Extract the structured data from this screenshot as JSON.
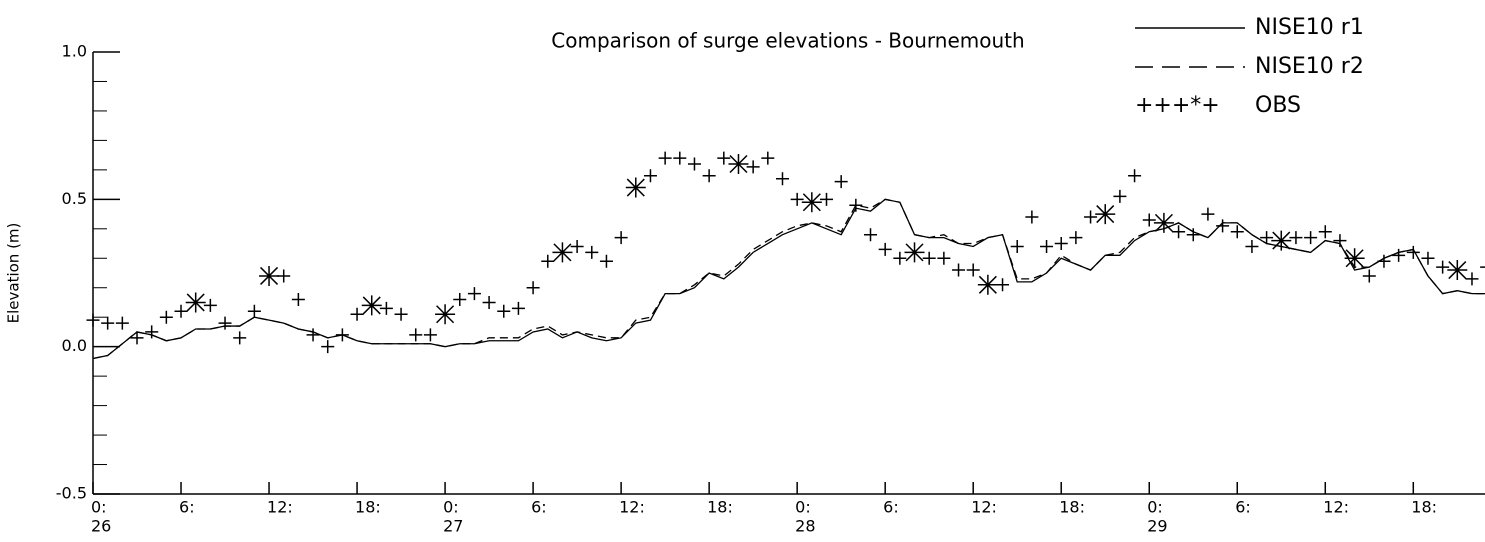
{
  "chart_data": {
    "type": "line",
    "title": "Comparison of surge elevations - Bournemouth",
    "y_label": "Elevation (m)",
    "xlim": [
      0,
      95
    ],
    "ylim": [
      -0.5,
      1.0
    ],
    "yticks": [
      {
        "value": -0.5,
        "label": "-0.5"
      },
      {
        "value": 0,
        "label": "0.0"
      },
      {
        "value": 0.5,
        "label": "0.5"
      },
      {
        "value": 1,
        "label": "1.0"
      }
    ],
    "yminorticks": [
      -0.4,
      -0.3,
      -0.2,
      -0.1,
      0.1,
      0.2,
      0.3,
      0.4,
      0.6,
      0.7,
      0.8,
      0.9
    ],
    "xticks": [
      {
        "value": 0,
        "label": "0:"
      },
      {
        "value": 6,
        "label": "6:"
      },
      {
        "value": 12,
        "label": "12:"
      },
      {
        "value": 18,
        "label": "18:"
      },
      {
        "value": 24,
        "label": "0:"
      },
      {
        "value": 30,
        "label": "6:"
      },
      {
        "value": 36,
        "label": "12:"
      },
      {
        "value": 42,
        "label": "18:"
      },
      {
        "value": 48,
        "label": "0:"
      },
      {
        "value": 54,
        "label": "6:"
      },
      {
        "value": 60,
        "label": "12:"
      },
      {
        "value": 66,
        "label": "18:"
      },
      {
        "value": 72,
        "label": "0:"
      },
      {
        "value": 78,
        "label": "6:"
      },
      {
        "value": 84,
        "label": "12:"
      },
      {
        "value": 90,
        "label": "18:"
      }
    ],
    "day_ticks": [
      {
        "value": 0,
        "label": "26"
      },
      {
        "value": 24,
        "label": "27"
      },
      {
        "value": 48,
        "label": "28"
      },
      {
        "value": 72,
        "label": "29"
      }
    ],
    "x": [
      0,
      1,
      2,
      3,
      4,
      5,
      6,
      7,
      8,
      9,
      10,
      11,
      12,
      13,
      14,
      15,
      16,
      17,
      18,
      19,
      20,
      21,
      22,
      23,
      24,
      25,
      26,
      27,
      28,
      29,
      30,
      31,
      32,
      33,
      34,
      35,
      36,
      37,
      38,
      39,
      40,
      41,
      42,
      43,
      44,
      45,
      46,
      47,
      48,
      49,
      50,
      51,
      52,
      53,
      54,
      55,
      56,
      57,
      58,
      59,
      60,
      61,
      62,
      63,
      64,
      65,
      66,
      67,
      68,
      69,
      70,
      71,
      72,
      73,
      74,
      75,
      76,
      77,
      78,
      79,
      80,
      81,
      82,
      83,
      84,
      85,
      86,
      87,
      88,
      89,
      90,
      91,
      92,
      93,
      94,
      95
    ],
    "series": [
      {
        "name": "NISE10 r1",
        "color": "#000000",
        "dash": "none",
        "values": [
          -0.04,
          -0.03,
          0.01,
          0.05,
          0.04,
          0.02,
          0.03,
          0.06,
          0.06,
          0.07,
          0.07,
          0.1,
          0.09,
          0.08,
          0.06,
          0.05,
          0.03,
          0.04,
          0.02,
          0.01,
          0.01,
          0.01,
          0.01,
          0.01,
          0.0,
          0.01,
          0.01,
          0.02,
          0.02,
          0.02,
          0.05,
          0.06,
          0.03,
          0.05,
          0.03,
          0.02,
          0.03,
          0.08,
          0.09,
          0.18,
          0.18,
          0.2,
          0.25,
          0.23,
          0.27,
          0.32,
          0.35,
          0.38,
          0.4,
          0.42,
          0.4,
          0.38,
          0.47,
          0.46,
          0.5,
          0.49,
          0.38,
          0.37,
          0.37,
          0.35,
          0.34,
          0.37,
          0.38,
          0.22,
          0.22,
          0.25,
          0.3,
          0.28,
          0.26,
          0.31,
          0.31,
          0.36,
          0.39,
          0.4,
          0.42,
          0.39,
          0.37,
          0.42,
          0.42,
          0.38,
          0.35,
          0.34,
          0.33,
          0.32,
          0.36,
          0.35,
          0.26,
          0.27,
          0.3,
          0.32,
          0.33,
          0.24,
          0.18,
          0.19,
          0.18,
          0.18
        ]
      },
      {
        "name": "NISE10 r2",
        "color": "#000000",
        "dash": "8,5",
        "values": [
          -0.04,
          -0.03,
          0.01,
          0.05,
          0.04,
          0.02,
          0.03,
          0.06,
          0.06,
          0.07,
          0.07,
          0.1,
          0.09,
          0.08,
          0.06,
          0.05,
          0.03,
          0.04,
          0.02,
          0.01,
          0.01,
          0.01,
          0.01,
          0.01,
          0.0,
          0.01,
          0.01,
          0.03,
          0.03,
          0.03,
          0.06,
          0.07,
          0.04,
          0.05,
          0.04,
          0.03,
          0.03,
          0.09,
          0.1,
          0.18,
          0.18,
          0.21,
          0.25,
          0.24,
          0.28,
          0.33,
          0.36,
          0.39,
          0.41,
          0.42,
          0.41,
          0.39,
          0.48,
          0.47,
          0.5,
          0.49,
          0.38,
          0.37,
          0.38,
          0.35,
          0.35,
          0.37,
          0.38,
          0.23,
          0.23,
          0.25,
          0.31,
          0.28,
          0.26,
          0.31,
          0.32,
          0.37,
          0.39,
          0.4,
          0.42,
          0.39,
          0.37,
          0.42,
          0.42,
          0.38,
          0.35,
          0.34,
          0.33,
          0.32,
          0.36,
          0.35,
          0.27,
          0.27,
          0.3,
          0.32,
          0.33,
          0.24,
          0.18,
          0.19,
          0.18,
          0.18
        ]
      },
      {
        "name": "OBS",
        "color": "#000000",
        "type": "scatter",
        "values": [
          0.09,
          0.08,
          0.08,
          0.03,
          0.05,
          0.1,
          0.12,
          0.15,
          0.14,
          0.08,
          0.03,
          0.12,
          0.24,
          0.24,
          0.16,
          0.04,
          0.0,
          0.04,
          0.11,
          0.14,
          0.13,
          0.11,
          0.04,
          0.04,
          0.11,
          0.16,
          0.18,
          0.15,
          0.12,
          0.13,
          0.2,
          0.29,
          0.32,
          0.34,
          0.32,
          0.29,
          0.37,
          0.54,
          0.58,
          0.64,
          0.64,
          0.62,
          0.58,
          0.64,
          0.62,
          0.61,
          0.64,
          0.57,
          0.5,
          0.49,
          0.5,
          0.56,
          0.48,
          0.38,
          0.33,
          0.3,
          0.32,
          0.3,
          0.3,
          0.26,
          0.26,
          0.21,
          0.21,
          0.34,
          0.44,
          0.34,
          0.35,
          0.37,
          0.44,
          0.45,
          0.51,
          0.58,
          0.43,
          0.42,
          0.39,
          0.38,
          0.45,
          0.41,
          0.39,
          0.34,
          0.37,
          0.36,
          0.37,
          0.37,
          0.39,
          0.36,
          0.3,
          0.24,
          0.29,
          0.31,
          0.32,
          0.3,
          0.27,
          0.26,
          0.23,
          0.27
        ],
        "markers": [
          "+",
          "+",
          "+",
          "+",
          "+",
          "+",
          "+",
          "*",
          "+",
          "+",
          "+",
          "+",
          "*",
          "+",
          "+",
          "+",
          "+",
          "+",
          "+",
          "*",
          "+",
          "+",
          "+",
          "+",
          "*",
          "+",
          "+",
          "+",
          "+",
          "+",
          "+",
          "+",
          "*",
          "+",
          "+",
          "+",
          "+",
          "*",
          "+",
          "+",
          "+",
          "+",
          "+",
          "+",
          "*",
          "+",
          "+",
          "+",
          "+",
          "*",
          "+",
          "+",
          "+",
          "+",
          "+",
          "+",
          "*",
          "+",
          "+",
          "+",
          "+",
          "*",
          "+",
          "+",
          "+",
          "+",
          "+",
          "+",
          "+",
          "*",
          "+",
          "+",
          "+",
          "*",
          "+",
          "+",
          "+",
          "+",
          "+",
          "+",
          "+",
          "*",
          "+",
          "+",
          "+",
          "+",
          "*",
          "+",
          "+",
          "+",
          "+",
          "+",
          "+",
          "*",
          "+",
          "+"
        ]
      }
    ],
    "legend_symbols": "+++*+",
    "legend": "upper right"
  }
}
